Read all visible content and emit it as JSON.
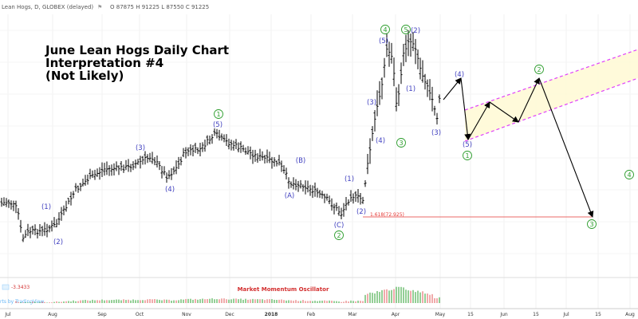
{
  "header": {
    "symbol": "Lean Hogs, D, GLOBEX (delayed)",
    "ohlc": "O 87875  H 91225  L 87550  C 91225",
    "flag_icon": "flag-icon"
  },
  "title": {
    "line1": "June Lean Hogs Daily Chart",
    "line2": "Interpretation #4",
    "line3": "(Not Likely)"
  },
  "chart_data": {
    "type": "bar",
    "price_ylim": [
      68,
      98
    ],
    "x_ticks": [
      "Jul",
      "Aug",
      "Sep",
      "Oct",
      "Nov",
      "Dec",
      "2018",
      "Feb",
      "Mar",
      "Apr",
      "May",
      "15",
      "Jun",
      "15",
      "Jul",
      "15",
      "Aug"
    ],
    "projection_path": [
      {
        "from_index": 0,
        "to_index": 1
      },
      {
        "from_index": 1,
        "to_index": 2
      },
      {
        "from_index": 2,
        "to_index": 3
      },
      {
        "from_index": 3,
        "to_index": 4
      },
      {
        "from_index": 4,
        "to_index": 5
      },
      {
        "from_index": 5,
        "to_index": 6
      }
    ],
    "fib_line": {
      "label": "1.618(72.925)",
      "value": 72.925,
      "color": "#e53935"
    },
    "wave_labels": [
      {
        "text": "(1)",
        "color": "blue"
      },
      {
        "text": "(2)",
        "color": "blue"
      },
      {
        "text": "(3)",
        "color": "blue"
      },
      {
        "text": "(4)",
        "color": "blue"
      },
      {
        "text": "(5)",
        "color": "blue"
      },
      {
        "text": "1",
        "color": "green",
        "circled": true
      },
      {
        "text": "(A)",
        "color": "blue"
      },
      {
        "text": "(B)",
        "color": "blue"
      },
      {
        "text": "(C)",
        "color": "blue"
      },
      {
        "text": "2",
        "color": "green",
        "circled": true
      },
      {
        "text": "(1)",
        "color": "blue"
      },
      {
        "text": "(2)",
        "color": "blue"
      },
      {
        "text": "(3)",
        "color": "blue"
      },
      {
        "text": "(4)",
        "color": "blue"
      },
      {
        "text": "3",
        "color": "green",
        "circled": true
      },
      {
        "text": "(5)",
        "color": "blue"
      },
      {
        "text": "4",
        "color": "green",
        "circled": true
      },
      {
        "text": "5",
        "color": "green",
        "circled": true
      },
      {
        "text": "(1)",
        "color": "blue"
      },
      {
        "text": "(2)",
        "color": "blue"
      },
      {
        "text": "(3)",
        "color": "blue"
      },
      {
        "text": "(4)",
        "color": "blue"
      },
      {
        "text": "(5)",
        "color": "blue"
      },
      {
        "text": "1",
        "color": "green",
        "circled": true
      },
      {
        "text": "2",
        "color": "green",
        "circled": true
      },
      {
        "text": "3",
        "color": "green",
        "circled": true
      },
      {
        "text": "4",
        "color": "green",
        "circled": true
      }
    ],
    "oscillator": {
      "title": "Market Momentum Oscillator",
      "value_label": "-3.3433",
      "attribution": "rts by TradingView"
    },
    "colors": {
      "bars": "#000000",
      "wave_blue": "#3f3fbf",
      "wave_green": "#2e9e2e",
      "channel": "#e040fb",
      "channel_fill": "#fff9d6",
      "fib": "#e53935",
      "osc_up": "#4caf50",
      "osc_down": "#e57373"
    }
  }
}
